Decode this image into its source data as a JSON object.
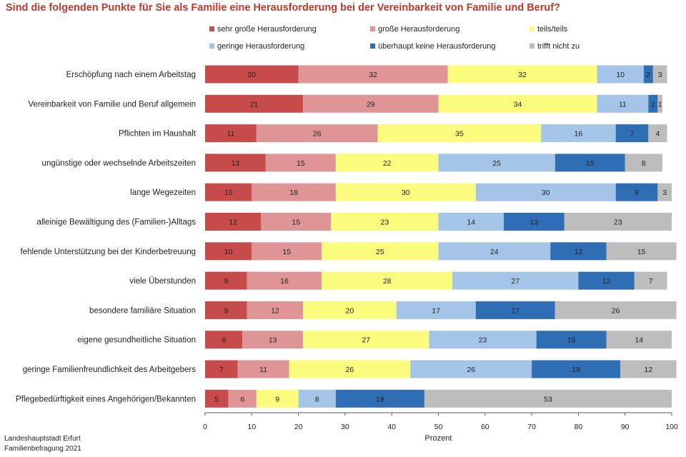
{
  "chart_data": {
    "type": "bar",
    "orientation": "horizontal",
    "stacked": true,
    "title": "Sind die folgenden Punkte für Sie als Familie eine Herausforderung bei der Vereinbarkeit von Familie und Beruf?",
    "xlabel": "Prozent",
    "ylabel": "",
    "xlim": [
      0,
      100
    ],
    "xticks": [
      0,
      10,
      20,
      30,
      40,
      50,
      60,
      70,
      80,
      90,
      100
    ],
    "legend_position": "top",
    "grid": false,
    "categories": [
      "Erschöpfung nach einem Arbeitstag",
      "Vereinbarkeit von Familie und Beruf allgemein",
      "Pflichten im Haushalt",
      "ungünstige oder wechselnde Arbeitszeiten",
      "lange Wegezeiten",
      "alleinige Bewältigung des (Familien-)Alltags",
      "fehlende Unterstützung bei der Kinderbetreuung",
      "viele Überstunden",
      "besondere familiäre Situation",
      "eigene gesundheitliche Situation",
      "geringe Familienfreundlichkeit des Arbeitgebers",
      "Pflegebedürftigkeit eines Angehörigen/Bekannten"
    ],
    "series": [
      {
        "name": "sehr große Herausforderung",
        "color": "#c84b4b",
        "values": [
          20,
          21,
          11,
          13,
          10,
          12,
          10,
          9,
          9,
          8,
          7,
          5
        ]
      },
      {
        "name": "große Herausforderung",
        "color": "#df9595",
        "values": [
          32,
          29,
          26,
          15,
          18,
          15,
          15,
          16,
          12,
          13,
          11,
          6
        ]
      },
      {
        "name": "teils/teils",
        "color": "#fbfb7e",
        "values": [
          32,
          34,
          35,
          22,
          30,
          23,
          25,
          28,
          20,
          27,
          26,
          9
        ]
      },
      {
        "name": "geringe Herausforderung",
        "color": "#a4c5e8",
        "values": [
          10,
          11,
          16,
          25,
          30,
          14,
          24,
          27,
          17,
          23,
          26,
          8
        ]
      },
      {
        "name": "überhaupt keine Herausforderung",
        "color": "#2f6eb5",
        "values": [
          2,
          2,
          7,
          15,
          9,
          13,
          12,
          12,
          17,
          15,
          19,
          19
        ]
      },
      {
        "name": "trifft nicht zu",
        "color": "#bdbdbd",
        "values": [
          3,
          1,
          4,
          8,
          3,
          23,
          15,
          7,
          26,
          14,
          12,
          53
        ]
      }
    ]
  },
  "footer": {
    "line1": "Landeshauptstadt Erfurt",
    "line2": "Familienbefragung 2021"
  }
}
